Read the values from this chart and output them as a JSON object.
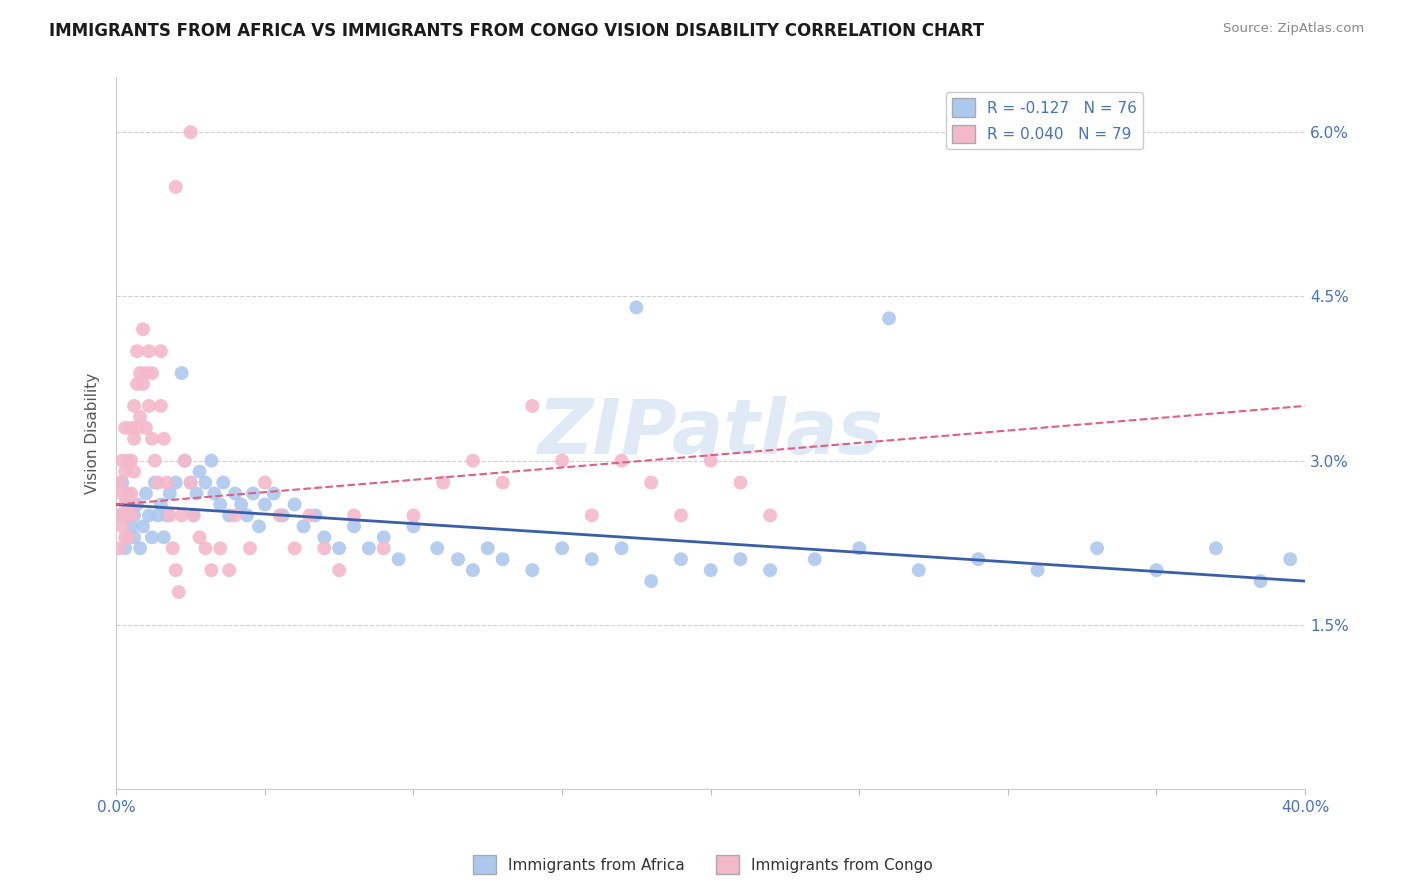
{
  "title": "IMMIGRANTS FROM AFRICA VS IMMIGRANTS FROM CONGO VISION DISABILITY CORRELATION CHART",
  "source": "Source: ZipAtlas.com",
  "ylabel": "Vision Disability",
  "xlim": [
    0.0,
    0.4
  ],
  "ylim": [
    0.0,
    0.065
  ],
  "yticks": [
    0.0,
    0.015,
    0.03,
    0.045,
    0.06
  ],
  "ytick_labels": [
    "",
    "1.5%",
    "3.0%",
    "4.5%",
    "6.0%"
  ],
  "xticks": [
    0.0,
    0.05,
    0.1,
    0.15,
    0.2,
    0.25,
    0.3,
    0.35,
    0.4
  ],
  "xtick_labels": [
    "0.0%",
    "",
    "",
    "",
    "",
    "",
    "",
    "",
    "40.0%"
  ],
  "legend_blue_label": "R = -0.127   N = 76",
  "legend_pink_label": "R = 0.040   N = 79",
  "blue_scatter_color": "#adc8ed",
  "pink_scatter_color": "#f4b8cb",
  "blue_line_color": "#3a5fa8",
  "pink_line_color": "#e06080",
  "watermark": "ZIPatlas",
  "africa_x": [
    0.001,
    0.002,
    0.003,
    0.004,
    0.005,
    0.006,
    0.006,
    0.007,
    0.008,
    0.009,
    0.01,
    0.011,
    0.012,
    0.013,
    0.014,
    0.015,
    0.016,
    0.017,
    0.018,
    0.02,
    0.022,
    0.023,
    0.025,
    0.026,
    0.027,
    0.028,
    0.03,
    0.032,
    0.033,
    0.035,
    0.036,
    0.038,
    0.04,
    0.042,
    0.044,
    0.046,
    0.048,
    0.05,
    0.053,
    0.056,
    0.06,
    0.063,
    0.067,
    0.07,
    0.075,
    0.08,
    0.085,
    0.09,
    0.095,
    0.1,
    0.108,
    0.115,
    0.12,
    0.125,
    0.13,
    0.14,
    0.15,
    0.16,
    0.17,
    0.18,
    0.19,
    0.2,
    0.21,
    0.22,
    0.235,
    0.25,
    0.27,
    0.29,
    0.31,
    0.33,
    0.35,
    0.37,
    0.385,
    0.395,
    0.26,
    0.175
  ],
  "africa_y": [
    0.025,
    0.028,
    0.022,
    0.026,
    0.024,
    0.025,
    0.023,
    0.026,
    0.022,
    0.024,
    0.027,
    0.025,
    0.023,
    0.028,
    0.025,
    0.026,
    0.023,
    0.025,
    0.027,
    0.028,
    0.038,
    0.03,
    0.028,
    0.025,
    0.027,
    0.029,
    0.028,
    0.03,
    0.027,
    0.026,
    0.028,
    0.025,
    0.027,
    0.026,
    0.025,
    0.027,
    0.024,
    0.026,
    0.027,
    0.025,
    0.026,
    0.024,
    0.025,
    0.023,
    0.022,
    0.024,
    0.022,
    0.023,
    0.021,
    0.024,
    0.022,
    0.021,
    0.02,
    0.022,
    0.021,
    0.02,
    0.022,
    0.021,
    0.022,
    0.019,
    0.021,
    0.02,
    0.021,
    0.02,
    0.021,
    0.022,
    0.02,
    0.021,
    0.02,
    0.022,
    0.02,
    0.022,
    0.019,
    0.021,
    0.043,
    0.044
  ],
  "congo_x": [
    0.001,
    0.001,
    0.001,
    0.002,
    0.002,
    0.002,
    0.003,
    0.003,
    0.003,
    0.003,
    0.004,
    0.004,
    0.004,
    0.004,
    0.005,
    0.005,
    0.005,
    0.005,
    0.006,
    0.006,
    0.006,
    0.006,
    0.007,
    0.007,
    0.007,
    0.008,
    0.008,
    0.009,
    0.009,
    0.01,
    0.01,
    0.011,
    0.011,
    0.012,
    0.012,
    0.013,
    0.014,
    0.015,
    0.015,
    0.016,
    0.017,
    0.018,
    0.019,
    0.02,
    0.021,
    0.022,
    0.023,
    0.025,
    0.026,
    0.028,
    0.03,
    0.032,
    0.035,
    0.038,
    0.04,
    0.045,
    0.05,
    0.055,
    0.06,
    0.065,
    0.07,
    0.075,
    0.08,
    0.09,
    0.1,
    0.11,
    0.12,
    0.13,
    0.14,
    0.15,
    0.16,
    0.17,
    0.18,
    0.19,
    0.2,
    0.21,
    0.22,
    0.02,
    0.025
  ],
  "congo_y": [
    0.025,
    0.028,
    0.022,
    0.03,
    0.027,
    0.024,
    0.033,
    0.029,
    0.026,
    0.023,
    0.03,
    0.027,
    0.025,
    0.023,
    0.033,
    0.03,
    0.027,
    0.025,
    0.035,
    0.032,
    0.029,
    0.026,
    0.04,
    0.037,
    0.033,
    0.038,
    0.034,
    0.042,
    0.037,
    0.038,
    0.033,
    0.04,
    0.035,
    0.038,
    0.032,
    0.03,
    0.028,
    0.04,
    0.035,
    0.032,
    0.028,
    0.025,
    0.022,
    0.02,
    0.018,
    0.025,
    0.03,
    0.028,
    0.025,
    0.023,
    0.022,
    0.02,
    0.022,
    0.02,
    0.025,
    0.022,
    0.028,
    0.025,
    0.022,
    0.025,
    0.022,
    0.02,
    0.025,
    0.022,
    0.025,
    0.028,
    0.03,
    0.028,
    0.035,
    0.03,
    0.025,
    0.03,
    0.028,
    0.025,
    0.03,
    0.028,
    0.025,
    0.055,
    0.06
  ],
  "blue_trend_x": [
    0.0,
    0.4
  ],
  "blue_trend_y": [
    0.026,
    0.019
  ],
  "pink_trend_x": [
    0.0,
    0.4
  ],
  "pink_trend_y": [
    0.026,
    0.035
  ]
}
